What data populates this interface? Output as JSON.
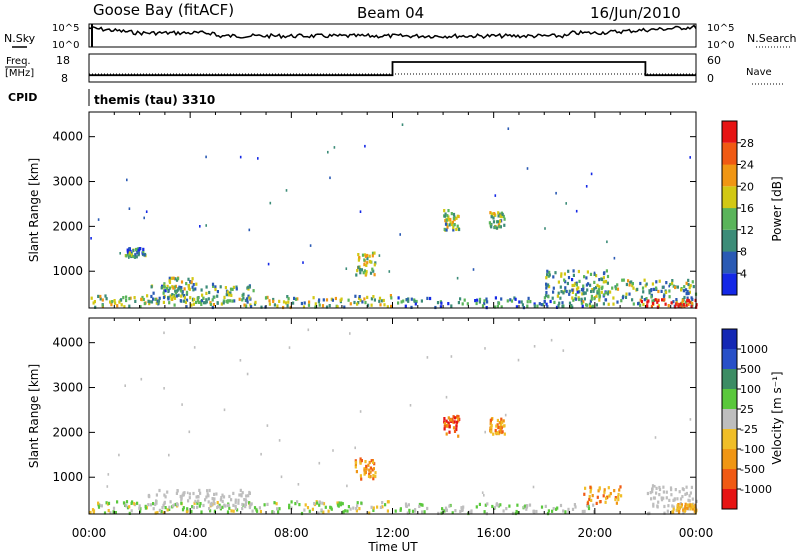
{
  "header": {
    "station": "Goose Bay (fitACF)",
    "beam": "Beam 04",
    "date": "16/Jun/2010"
  },
  "noise_panel": {
    "left_label": "N.Sky",
    "right_label": "N.Search",
    "left_ticks": [
      "10^5",
      "10^0"
    ],
    "right_ticks": [
      "10^5",
      "10^0"
    ]
  },
  "freq_panel": {
    "left_label": "Freq.",
    "left_unit": "[MHz]",
    "right_label": "Nave",
    "left_ticks": [
      "18",
      "8"
    ],
    "right_ticks": [
      "60",
      "0"
    ],
    "freq_segments": [
      {
        "from": 0,
        "to": 12,
        "value": 10
      },
      {
        "from": 12,
        "to": 22,
        "value": 15.5
      },
      {
        "from": 22,
        "to": 24,
        "value": 10
      }
    ]
  },
  "cpid": {
    "label": "CPID",
    "mode": "themis (tau) 3310"
  },
  "colors": {
    "power": [
      "#1428e6",
      "#2a5ab4",
      "#3c8c78",
      "#5ab45a",
      "#d2c814",
      "#f09614",
      "#f05a14",
      "#e61414"
    ],
    "velocity": [
      "#e61414",
      "#f05a14",
      "#f09614",
      "#f0be28",
      "#bebebe",
      "#5ac83c",
      "#3c8c64",
      "#2850c8",
      "#1428b4"
    ]
  },
  "chart_data": [
    {
      "type": "heatmap",
      "title": "Power",
      "xlabel": "",
      "ylabel": "Slant Range [km]",
      "xlim": [
        0,
        24
      ],
      "ylim": [
        180,
        4550
      ],
      "y_ticks": [
        "1000",
        "2000",
        "3000",
        "4000"
      ],
      "colorbar": {
        "label": "Power [dB]",
        "ticks": [
          "4",
          "8",
          "12",
          "16",
          "20",
          "24",
          "28"
        ],
        "range": [
          0,
          32
        ]
      },
      "regions": [
        {
          "t": [
            0.0,
            12.0
          ],
          "r": [
            180,
            450
          ],
          "level": 0.45
        },
        {
          "t": [
            2.3,
            6.5
          ],
          "r": [
            280,
            700
          ],
          "level": 0.35
        },
        {
          "t": [
            2.8,
            4.2
          ],
          "r": [
            500,
            850
          ],
          "level": 0.45
        },
        {
          "t": [
            1.4,
            2.2
          ],
          "r": [
            1300,
            1500
          ],
          "level": 0.3
        },
        {
          "t": [
            10.5,
            11.3
          ],
          "r": [
            900,
            1400
          ],
          "level": 0.5
        },
        {
          "t": [
            14.0,
            14.6
          ],
          "r": [
            1900,
            2350
          ],
          "level": 0.45
        },
        {
          "t": [
            15.8,
            16.4
          ],
          "r": [
            1950,
            2300
          ],
          "level": 0.45
        },
        {
          "t": [
            12.0,
            20.0
          ],
          "r": [
            180,
            400
          ],
          "level": 0.25
        },
        {
          "t": [
            18.0,
            20.5
          ],
          "r": [
            400,
            1000
          ],
          "level": 0.35
        },
        {
          "t": [
            19.0,
            24.0
          ],
          "r": [
            200,
            800
          ],
          "level": 0.4
        },
        {
          "t": [
            21.5,
            24.0
          ],
          "r": [
            180,
            360
          ],
          "level": 0.95
        }
      ]
    },
    {
      "type": "heatmap",
      "title": "Velocity",
      "xlabel": "Time UT",
      "ylabel": "Slant Range [km]",
      "xlim": [
        0,
        24
      ],
      "ylim": [
        180,
        4550
      ],
      "x_ticks": [
        "00:00",
        "04:00",
        "08:00",
        "12:00",
        "16:00",
        "20:00",
        "00:00"
      ],
      "y_ticks": [
        "1000",
        "2000",
        "3000",
        "4000"
      ],
      "colorbar": {
        "label": "Velocity [m s⁻¹]",
        "ticks": [
          "1000",
          "500",
          "100",
          "25",
          "-25",
          "-100",
          "-500",
          "-1000"
        ]
      },
      "regions": [
        {
          "t": [
            0.0,
            12.0
          ],
          "r": [
            180,
            450
          ],
          "level": "mix-green-gray"
        },
        {
          "t": [
            2.3,
            6.5
          ],
          "r": [
            280,
            700
          ],
          "level": "gray"
        },
        {
          "t": [
            10.5,
            11.3
          ],
          "r": [
            900,
            1400
          ],
          "level": "orange"
        },
        {
          "t": [
            14.0,
            14.6
          ],
          "r": [
            1900,
            2350
          ],
          "level": "orange-red"
        },
        {
          "t": [
            15.8,
            16.4
          ],
          "r": [
            1950,
            2300
          ],
          "level": "orange"
        },
        {
          "t": [
            12.0,
            20.0
          ],
          "r": [
            180,
            400
          ],
          "level": "green"
        },
        {
          "t": [
            19.5,
            21.0
          ],
          "r": [
            400,
            800
          ],
          "level": "orange"
        },
        {
          "t": [
            22.0,
            24.0
          ],
          "r": [
            180,
            800
          ],
          "level": "gray"
        },
        {
          "t": [
            23.0,
            24.0
          ],
          "r": [
            180,
            400
          ],
          "level": "yellow-orange"
        }
      ]
    }
  ]
}
